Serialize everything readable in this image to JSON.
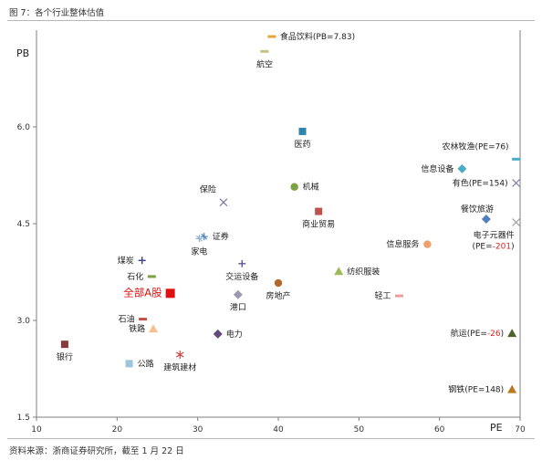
{
  "caption": "图 7：各个行业整体估值",
  "source": "资料来源：浙商证券研究所，截至 1 月 22 日",
  "chart_data": {
    "type": "scatter",
    "title": "",
    "xlabel": "PE",
    "ylabel": "PB",
    "xlim": [
      10,
      70
    ],
    "ylim": [
      1.5,
      7.5
    ],
    "xticks": [
      10,
      20,
      30,
      40,
      50,
      60,
      70
    ],
    "yticks": [
      1.5,
      3.0,
      4.5,
      6.0
    ],
    "ytick_labels": [
      "1.5",
      "3.0",
      "4.5",
      "6.0"
    ],
    "grid": false,
    "legend": "none",
    "points": [
      {
        "label": "食品饮料(PB=7.83)",
        "x": 39.2,
        "y": 7.4,
        "color": "#e8a33a",
        "marker": "dash",
        "label_pos": "right"
      },
      {
        "label": "航空",
        "x": 38.3,
        "y": 7.17,
        "color": "#c8c080",
        "marker": "dash",
        "label_pos": "below"
      },
      {
        "label": "医药",
        "x": 43.0,
        "y": 5.93,
        "color": "#2e86ab",
        "marker": "square",
        "label_pos": "below"
      },
      {
        "label": "机械",
        "x": 42.0,
        "y": 5.07,
        "color": "#7ba23f",
        "marker": "circle",
        "label_pos": "right"
      },
      {
        "label": "商业贸易",
        "x": 45.0,
        "y": 4.69,
        "color": "#c0504d",
        "marker": "square",
        "label_pos": "below"
      },
      {
        "label": "保险",
        "x": 33.2,
        "y": 4.83,
        "color": "#7878a8",
        "marker": "x",
        "label_pos": "above-left"
      },
      {
        "label": "证券",
        "x": 30.8,
        "y": 4.3,
        "color": "#4f81bd",
        "marker": "star",
        "label_pos": "right"
      },
      {
        "label": "家电",
        "x": 30.2,
        "y": 4.27,
        "color": "#8ab0d8",
        "marker": "star",
        "label_pos": "below"
      },
      {
        "label": "煤炭",
        "x": 23.1,
        "y": 3.93,
        "color": "#3c3c8c",
        "marker": "plus",
        "label_pos": "left"
      },
      {
        "label": "交运设备",
        "x": 35.5,
        "y": 3.88,
        "color": "#5a5a9a",
        "marker": "plus",
        "label_pos": "below"
      },
      {
        "label": "石化",
        "x": 24.3,
        "y": 3.68,
        "color": "#7ba23f",
        "marker": "dash",
        "label_pos": "left"
      },
      {
        "label": "纺织服装",
        "x": 47.5,
        "y": 3.76,
        "color": "#9bbb59",
        "marker": "triangle",
        "label_pos": "right"
      },
      {
        "label": "房地产",
        "x": 40.0,
        "y": 3.58,
        "color": "#b06a2a",
        "marker": "circle",
        "label_pos": "below"
      },
      {
        "label": "港口",
        "x": 35.0,
        "y": 3.4,
        "color": "#9a9ab0",
        "marker": "diamond",
        "label_pos": "below"
      },
      {
        "label": "全部A股",
        "x": 26.6,
        "y": 3.42,
        "color": "#e01010",
        "marker": "square-big",
        "label_pos": "left",
        "emphasis": true
      },
      {
        "label": "轻工",
        "x": 55.0,
        "y": 3.38,
        "color": "#e8a0a0",
        "marker": "dash",
        "label_pos": "left"
      },
      {
        "label": "信息服务",
        "x": 58.5,
        "y": 4.18,
        "color": "#f0a070",
        "marker": "circle",
        "label_pos": "left"
      },
      {
        "label": "信息设备",
        "x": 62.8,
        "y": 5.35,
        "color": "#4bacc6",
        "marker": "diamond",
        "label_pos": "left"
      },
      {
        "label": "农林牧渔(PE=76)",
        "x": 69.5,
        "y": 5.5,
        "color": "#4bacc6",
        "marker": "dash",
        "label_pos": "above-left"
      },
      {
        "label": "有色(PE=154)",
        "x": 69.5,
        "y": 5.13,
        "color": "#8080b0",
        "marker": "x",
        "label_pos": "left"
      },
      {
        "label": "餐饮旅游",
        "x": 65.8,
        "y": 4.57,
        "color": "#4f81bd",
        "marker": "diamond",
        "label_pos": "above"
      },
      {
        "label": "电子元器件",
        "x": 69.5,
        "y": 4.52,
        "color": "#a0a0a0",
        "marker": "x",
        "label_pos": "below-left"
      },
      {
        "label": "(PE=-201)",
        "x": 69.5,
        "y": 4.52,
        "color": "#a0a0a0",
        "marker": "none",
        "label_pos": "below-left2",
        "negative_part": "-201"
      },
      {
        "label": "石油",
        "x": 23.2,
        "y": 3.02,
        "color": "#c0504d",
        "marker": "dash",
        "label_pos": "left"
      },
      {
        "label": "铁路",
        "x": 24.5,
        "y": 2.87,
        "color": "#f8c090",
        "marker": "triangle",
        "label_pos": "left"
      },
      {
        "label": "电力",
        "x": 32.5,
        "y": 2.79,
        "color": "#604a7b",
        "marker": "diamond",
        "label_pos": "right"
      },
      {
        "label": "银行",
        "x": 13.5,
        "y": 2.63,
        "color": "#8b3a3a",
        "marker": "square",
        "label_pos": "below"
      },
      {
        "label": "公路",
        "x": 21.5,
        "y": 2.33,
        "color": "#9ec5dc",
        "marker": "square",
        "label_pos": "right"
      },
      {
        "label": "建筑建材",
        "x": 27.8,
        "y": 2.47,
        "color": "#d04040",
        "marker": "asterisk",
        "label_pos": "below"
      },
      {
        "label": "航运(PE=-26)",
        "x": 69.0,
        "y": 2.8,
        "color": "#4f6228",
        "marker": "triangle",
        "label_pos": "left",
        "negative_part": "-26"
      },
      {
        "label": "钢铁(PE=148)",
        "x": 69.0,
        "y": 1.93,
        "color": "#c07820",
        "marker": "triangle",
        "label_pos": "left"
      }
    ]
  }
}
